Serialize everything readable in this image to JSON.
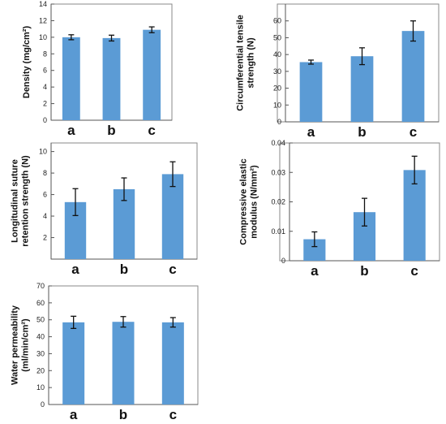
{
  "colors": {
    "bar": "#5b9bd5",
    "error_bar": "#111111",
    "frame": "#8a8a8a"
  },
  "chart_data": [
    {
      "type": "bar",
      "categories": [
        "a",
        "b",
        "c"
      ],
      "values": [
        10.0,
        9.9,
        10.9
      ],
      "errors": [
        0.3,
        0.35,
        0.35
      ],
      "ylabel_lines": [
        "Density (mg/cm²)"
      ],
      "ylim": [
        0,
        14
      ],
      "yticks": [
        0,
        2,
        4,
        6,
        8,
        10,
        12,
        14
      ],
      "tick_labels": [
        "0",
        "2",
        "4",
        "6",
        "8",
        "10",
        "12",
        "14"
      ]
    },
    {
      "type": "bar",
      "categories": [
        "a",
        "b",
        "c"
      ],
      "values": [
        35.5,
        39,
        54
      ],
      "errors": [
        1.2,
        5,
        6
      ],
      "ylabel_lines": [
        "Circumferential tensile",
        "strength (N)"
      ],
      "ylim": [
        0,
        70
      ],
      "yticks": [
        0,
        10,
        20,
        30,
        40,
        50,
        60
      ],
      "tick_labels": [
        "0",
        "10",
        "20",
        "30",
        "40",
        "50",
        "60"
      ]
    },
    {
      "type": "bar",
      "categories": [
        "a",
        "b",
        "c"
      ],
      "values": [
        5.3,
        6.5,
        7.9
      ],
      "errors": [
        1.25,
        1.05,
        1.15
      ],
      "ylabel_lines": [
        "Longitudinal suture",
        "retention strength (N)"
      ],
      "ylim": [
        0,
        10.8
      ],
      "yticks": [
        0,
        2,
        4,
        6,
        8,
        10
      ],
      "tick_labels": [
        "",
        "2",
        "4",
        "6",
        "8",
        "10"
      ]
    },
    {
      "type": "bar",
      "categories": [
        "a",
        "b",
        "c"
      ],
      "values": [
        0.0073,
        0.0165,
        0.0308
      ],
      "errors": [
        0.0025,
        0.0047,
        0.0047
      ],
      "ylabel_lines": [
        "Compressive elastic",
        "modulus (N/mm²)"
      ],
      "ylim": [
        0,
        0.04
      ],
      "yticks": [
        0,
        0.01,
        0.02,
        0.03,
        0.04
      ],
      "tick_labels": [
        "0",
        "0.01",
        "0.02",
        "0.03",
        "0.04"
      ]
    },
    {
      "type": "bar",
      "categories": [
        "a",
        "b",
        "c"
      ],
      "values": [
        48.5,
        48.8,
        48.5
      ],
      "errors": [
        3.6,
        3.1,
        2.8
      ],
      "ylabel_lines": [
        "Water permeability",
        "(ml/min/cm²)"
      ],
      "ylim": [
        0,
        70
      ],
      "yticks": [
        0,
        10,
        20,
        30,
        40,
        50,
        60,
        70
      ],
      "tick_labels": [
        "0",
        "10",
        "20",
        "30",
        "40",
        "50",
        "60",
        "70"
      ]
    }
  ]
}
